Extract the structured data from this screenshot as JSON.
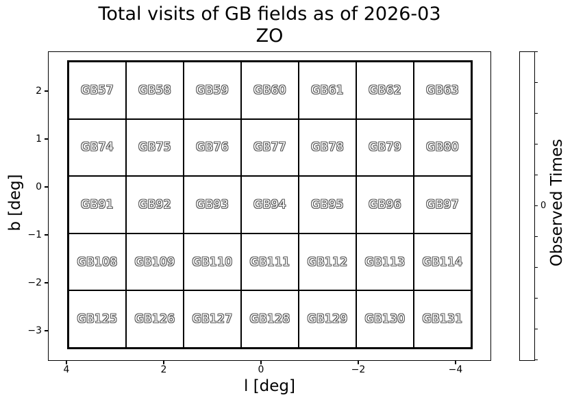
{
  "title": {
    "line1": "Total visits of GB fields as of 2026-03",
    "line2": "ZO"
  },
  "axes": {
    "xlabel": "l [deg]",
    "ylabel": "b [deg]",
    "xticks": [
      {
        "label": "4",
        "value": 4
      },
      {
        "label": "2",
        "value": 2
      },
      {
        "label": "0",
        "value": 0
      },
      {
        "label": "−2",
        "value": -2
      },
      {
        "label": "−4",
        "value": -4
      }
    ],
    "yticks": [
      {
        "label": "2",
        "value": 2
      },
      {
        "label": "1",
        "value": 1
      },
      {
        "label": "0",
        "value": 0
      },
      {
        "label": "−1",
        "value": -1
      },
      {
        "label": "−2",
        "value": -2
      },
      {
        "label": "−3",
        "value": -3
      }
    ]
  },
  "colorbar": {
    "label": "Observed Times",
    "tick_count": 11,
    "labeled_tick": {
      "index": 5,
      "label": "0"
    },
    "fill_color": "#ffffff",
    "line_color": "#000000"
  },
  "chart_data": {
    "type": "heatmap",
    "title": "Total visits of GB fields as of 2026-03",
    "subtitle": "ZO",
    "xlabel": "l [deg]",
    "ylabel": "b [deg]",
    "x_tick_values": [
      4,
      2,
      0,
      -2,
      -4
    ],
    "y_tick_values": [
      2,
      1,
      0,
      -1,
      -2,
      -3
    ],
    "xlim": [
      4.4,
      -4.7
    ],
    "ylim": [
      -3.5,
      2.9
    ],
    "colorbar_label": "Observed Times",
    "colorbar_tick_labels": [
      "0"
    ],
    "cell_fill_color": "#ffffff",
    "rows": [
      {
        "fields": [
          "GB57",
          "GB58",
          "GB59",
          "GB60",
          "GB61",
          "GB62",
          "GB63"
        ],
        "values": [
          0,
          0,
          0,
          0,
          0,
          0,
          0
        ]
      },
      {
        "fields": [
          "GB74",
          "GB75",
          "GB76",
          "GB77",
          "GB78",
          "GB79",
          "GB80"
        ],
        "values": [
          0,
          0,
          0,
          0,
          0,
          0,
          0
        ]
      },
      {
        "fields": [
          "GB91",
          "GB92",
          "GB93",
          "GB94",
          "GB95",
          "GB96",
          "GB97"
        ],
        "values": [
          0,
          0,
          0,
          0,
          0,
          0,
          0
        ]
      },
      {
        "fields": [
          "GB108",
          "GB109",
          "GB110",
          "GB111",
          "GB112",
          "GB113",
          "GB114"
        ],
        "values": [
          0,
          0,
          0,
          0,
          0,
          0,
          0
        ]
      },
      {
        "fields": [
          "GB125",
          "GB126",
          "GB127",
          "GB128",
          "GB129",
          "GB130",
          "GB131"
        ],
        "values": [
          0,
          0,
          0,
          0,
          0,
          0,
          0
        ]
      }
    ]
  }
}
